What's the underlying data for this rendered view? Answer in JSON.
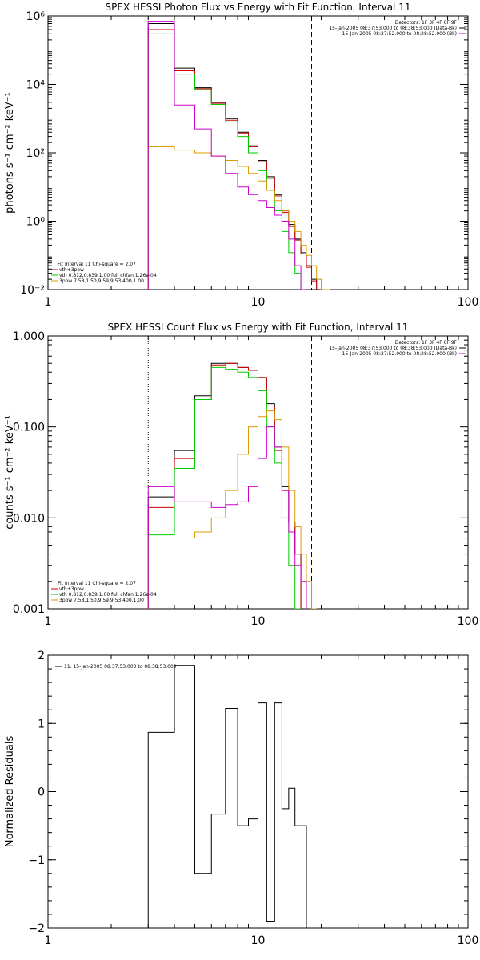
{
  "chart_data": [
    {
      "type": "line",
      "title": "SPEX HESSI Photon Flux vs Energy with Fit Function, Interval 11",
      "ylabel": "photons s⁻¹ cm⁻² keV⁻¹",
      "xlabel": "",
      "xscale": "log",
      "yscale": "log",
      "xlim": [
        1,
        100
      ],
      "ylim": [
        0.01,
        1000000
      ],
      "x_ticks": [
        {
          "value": 1,
          "label": "1"
        },
        {
          "value": 10,
          "label": "10"
        },
        {
          "value": 100,
          "label": "100"
        }
      ],
      "y_ticks": [
        {
          "value": 0.01,
          "label": "10⁻²"
        },
        {
          "value": 1,
          "label": "10⁰"
        },
        {
          "value": 100,
          "label": "10²"
        },
        {
          "value": 10000,
          "label": "10⁴"
        },
        {
          "value": 1000000,
          "label": "10⁶"
        }
      ],
      "vlines": [
        {
          "x": 3.0,
          "style": "dotted"
        },
        {
          "x": 18.0,
          "style": "dashed"
        }
      ],
      "meta_lines": [
        "Detectors: 1F 3F 4F 6F 9F",
        "15-Jan-2005 08:37:53.000 to 08:38:53.000 (Data-Bk)",
        "15-Jan-2005 08:27:52.000 to 08:28:52.000 (Bk)"
      ],
      "legend_lines": [
        "Fit Interval 11   Chi-square = 2.07",
        "vth+3pow",
        "vth 0.812,0.839,1.00  full chfan 1.26e-04",
        "3pow 7.58,1.50,9.59,9.53,400,1.00"
      ],
      "legend_colors": [
        "#000000",
        "#cc0000",
        "#00cc00",
        "#dd9900"
      ],
      "x_edges": [
        3.0,
        4.0,
        5.0,
        6.0,
        7.0,
        8.0,
        9.0,
        10.0,
        11.0,
        12.0,
        13.0,
        14.0,
        15.0,
        16.0,
        17.0,
        18.0,
        19.0,
        20.0,
        22.0
      ],
      "series": [
        {
          "color": "#000000",
          "values": [
            600000,
            30000,
            8000,
            3000,
            1000,
            400,
            160,
            60,
            20,
            6,
            2,
            0.8,
            0.3,
            0.12,
            0.05,
            0.02,
            null,
            null
          ]
        },
        {
          "color": "#cc0000",
          "values": [
            400000,
            25000,
            7500,
            2800,
            900,
            380,
            150,
            55,
            18,
            5.5,
            1.8,
            0.7,
            0.28,
            0.11,
            0.045,
            0.018,
            null,
            null
          ]
        },
        {
          "color": "#00cc00",
          "values": [
            300000,
            20000,
            7000,
            2600,
            800,
            300,
            100,
            30,
            8,
            2,
            0.5,
            0.12,
            0.03,
            0.008,
            null,
            null,
            null,
            null
          ]
        },
        {
          "color": "#dd9900",
          "values": [
            150,
            120,
            100,
            80,
            60,
            40,
            25,
            15,
            8,
            4,
            2,
            1,
            0.5,
            0.2,
            0.1,
            0.05,
            0.02,
            0.01
          ]
        },
        {
          "color": "#cc00cc",
          "values": [
            700000,
            2500,
            500,
            80,
            25,
            10,
            6,
            4,
            2.5,
            1.5,
            1.0,
            0.3,
            0.05,
            0.01,
            null,
            null,
            null,
            null
          ]
        }
      ]
    },
    {
      "type": "line",
      "title": "SPEX HESSI Count Flux vs Energy with Fit Function, Interval 11",
      "ylabel": "counts s⁻¹ cm⁻² keV⁻¹",
      "xlabel": "",
      "xscale": "log",
      "yscale": "log",
      "xlim": [
        1,
        100
      ],
      "ylim": [
        0.001,
        1.0
      ],
      "x_ticks": [
        {
          "value": 1,
          "label": "1"
        },
        {
          "value": 10,
          "label": "10"
        },
        {
          "value": 100,
          "label": "100"
        }
      ],
      "y_ticks": [
        {
          "value": 0.001,
          "label": "0.001"
        },
        {
          "value": 0.01,
          "label": "0.010"
        },
        {
          "value": 0.1,
          "label": "0.100"
        },
        {
          "value": 1.0,
          "label": "1.000"
        }
      ],
      "vlines": [
        {
          "x": 3.0,
          "style": "dotted"
        },
        {
          "x": 18.0,
          "style": "dashed"
        }
      ],
      "meta_lines": [
        "Detectors: 1F 3F 4F 6F 9F",
        "15-Jan-2005 08:37:53.000 to 08:38:53.000 (Data-Bk)",
        "15-Jan-2005 08:27:52.000 to 08:28:52.000 (Bk)"
      ],
      "legend_lines": [
        "Fit Interval 11   Chi-square = 2.07",
        "vth+3pow",
        "vth 0.812,0.839,1.00  full chfan 1.26e-04",
        "3pow 7.58,1.50,9.59,9.53,400,1.00"
      ],
      "legend_colors": [
        "#000000",
        "#cc0000",
        "#00cc00",
        "#dd9900"
      ],
      "x_edges": [
        3.0,
        4.0,
        5.0,
        6.0,
        7.0,
        8.0,
        9.0,
        10.0,
        11.0,
        12.0,
        13.0,
        14.0,
        15.0,
        16.0,
        17.0,
        18.0,
        19.0,
        20.0,
        22.0
      ],
      "series": [
        {
          "color": "#000000",
          "values": [
            0.017,
            0.055,
            0.22,
            0.5,
            0.5,
            0.45,
            0.42,
            0.35,
            0.18,
            0.06,
            0.022,
            0.009,
            0.004,
            null,
            null,
            null,
            null,
            null
          ]
        },
        {
          "color": "#cc0000",
          "values": [
            0.013,
            0.045,
            0.2,
            0.48,
            0.5,
            0.45,
            0.42,
            0.35,
            0.17,
            0.055,
            0.02,
            0.009,
            0.004,
            null,
            null,
            null,
            null,
            null
          ]
        },
        {
          "color": "#00cc00",
          "values": [
            0.0065,
            0.035,
            0.2,
            0.45,
            0.43,
            0.4,
            0.35,
            0.25,
            0.1,
            0.04,
            0.01,
            0.003,
            0.001,
            null,
            null,
            null,
            null,
            null
          ]
        },
        {
          "color": "#dd9900",
          "values": [
            0.006,
            0.006,
            0.007,
            0.01,
            0.02,
            0.05,
            0.1,
            0.13,
            0.15,
            0.12,
            0.06,
            0.02,
            0.008,
            0.004,
            0.002,
            0.001,
            null,
            null
          ]
        },
        {
          "color": "#cc00cc",
          "values": [
            0.022,
            0.015,
            0.015,
            0.013,
            0.014,
            0.015,
            0.022,
            0.045,
            0.1,
            0.06,
            0.02,
            0.007,
            0.003,
            0.002,
            null,
            null,
            null,
            null
          ]
        }
      ]
    },
    {
      "type": "line",
      "title": "",
      "ylabel": "Normalized Residuals",
      "xlabel": "",
      "xscale": "log",
      "yscale": "linear",
      "xlim": [
        1,
        100
      ],
      "ylim": [
        -2,
        2
      ],
      "x_ticks": [
        {
          "value": 1,
          "label": "1"
        },
        {
          "value": 10,
          "label": "10"
        },
        {
          "value": 100,
          "label": "100"
        }
      ],
      "y_ticks": [
        {
          "value": -2,
          "label": "−2"
        },
        {
          "value": -1,
          "label": "−1"
        },
        {
          "value": 0,
          "label": "0"
        },
        {
          "value": 1,
          "label": "1"
        },
        {
          "value": 2,
          "label": "2"
        }
      ],
      "vlines": [],
      "meta_lines": [],
      "legend_lines": [
        "11. 15-Jan-2005 08:37:53.000 to 08:38:53.000"
      ],
      "legend_colors": [
        "#000000"
      ],
      "x_edges": [
        3.0,
        3.5,
        4.0,
        5.0,
        6.0,
        7.0,
        8.0,
        9.0,
        10.0,
        11.0,
        12.0,
        13.0,
        14.0,
        15.0,
        16.0,
        17.0,
        18.0
      ],
      "series": [
        {
          "color": "#000000",
          "values": [
            0.87,
            0.87,
            1.85,
            -1.2,
            -0.33,
            1.22,
            -0.5,
            -0.4,
            1.3,
            -1.9,
            1.3,
            -0.25,
            0.05,
            -0.5,
            -0.5,
            -2.0
          ]
        }
      ]
    }
  ]
}
